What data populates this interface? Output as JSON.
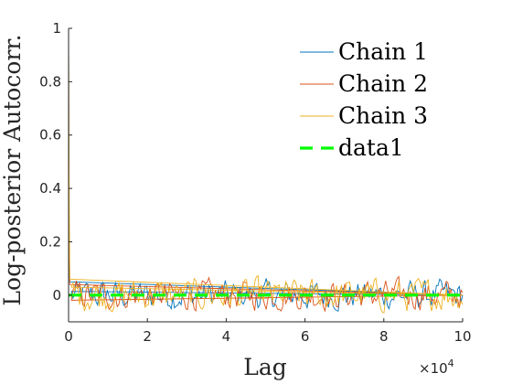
{
  "chart_data": {
    "type": "line",
    "xlabel": "Lag",
    "ylabel": "Log-posterior Autocorr.",
    "xlim": [
      0,
      100000
    ],
    "ylim": [
      -0.1,
      1
    ],
    "x_exponent_base": "×10",
    "x_exponent_power": "4",
    "x_ticks": [
      0,
      20000,
      40000,
      60000,
      80000,
      100000
    ],
    "x_tick_labels": [
      "0",
      "2",
      "4",
      "6",
      "8",
      "10"
    ],
    "y_ticks": [
      0,
      0.2,
      0.4,
      0.6,
      0.8,
      1
    ],
    "y_tick_labels": [
      "0",
      "0.2",
      "0.4",
      "0.6",
      "0.8",
      "1"
    ],
    "grid": false,
    "legend_position": "top-right",
    "series": [
      {
        "name": "Chain 1",
        "color": "#0072BD",
        "style": "solid",
        "description_points": {
          "x": [
            0,
            100,
            300,
            100000
          ],
          "y": [
            1,
            0.35,
            0.05,
            0
          ]
        },
        "noise_amplitude": 0.045
      },
      {
        "name": "Chain 2",
        "color": "#D95319",
        "style": "solid",
        "description_points": {
          "x": [
            0,
            100,
            300,
            100000
          ],
          "y": [
            1,
            0.3,
            0.04,
            0
          ]
        },
        "noise_amplitude": 0.045
      },
      {
        "name": "Chain 3",
        "color": "#EDB120",
        "style": "solid",
        "description_points": {
          "x": [
            0,
            100,
            300,
            100000
          ],
          "y": [
            1,
            0.5,
            0.06,
            0
          ]
        },
        "noise_amplitude": 0.05
      },
      {
        "name": "data1",
        "color": "#00FF00",
        "style": "dashed",
        "x": [
          0,
          100000
        ],
        "y": [
          0,
          0
        ]
      }
    ]
  }
}
